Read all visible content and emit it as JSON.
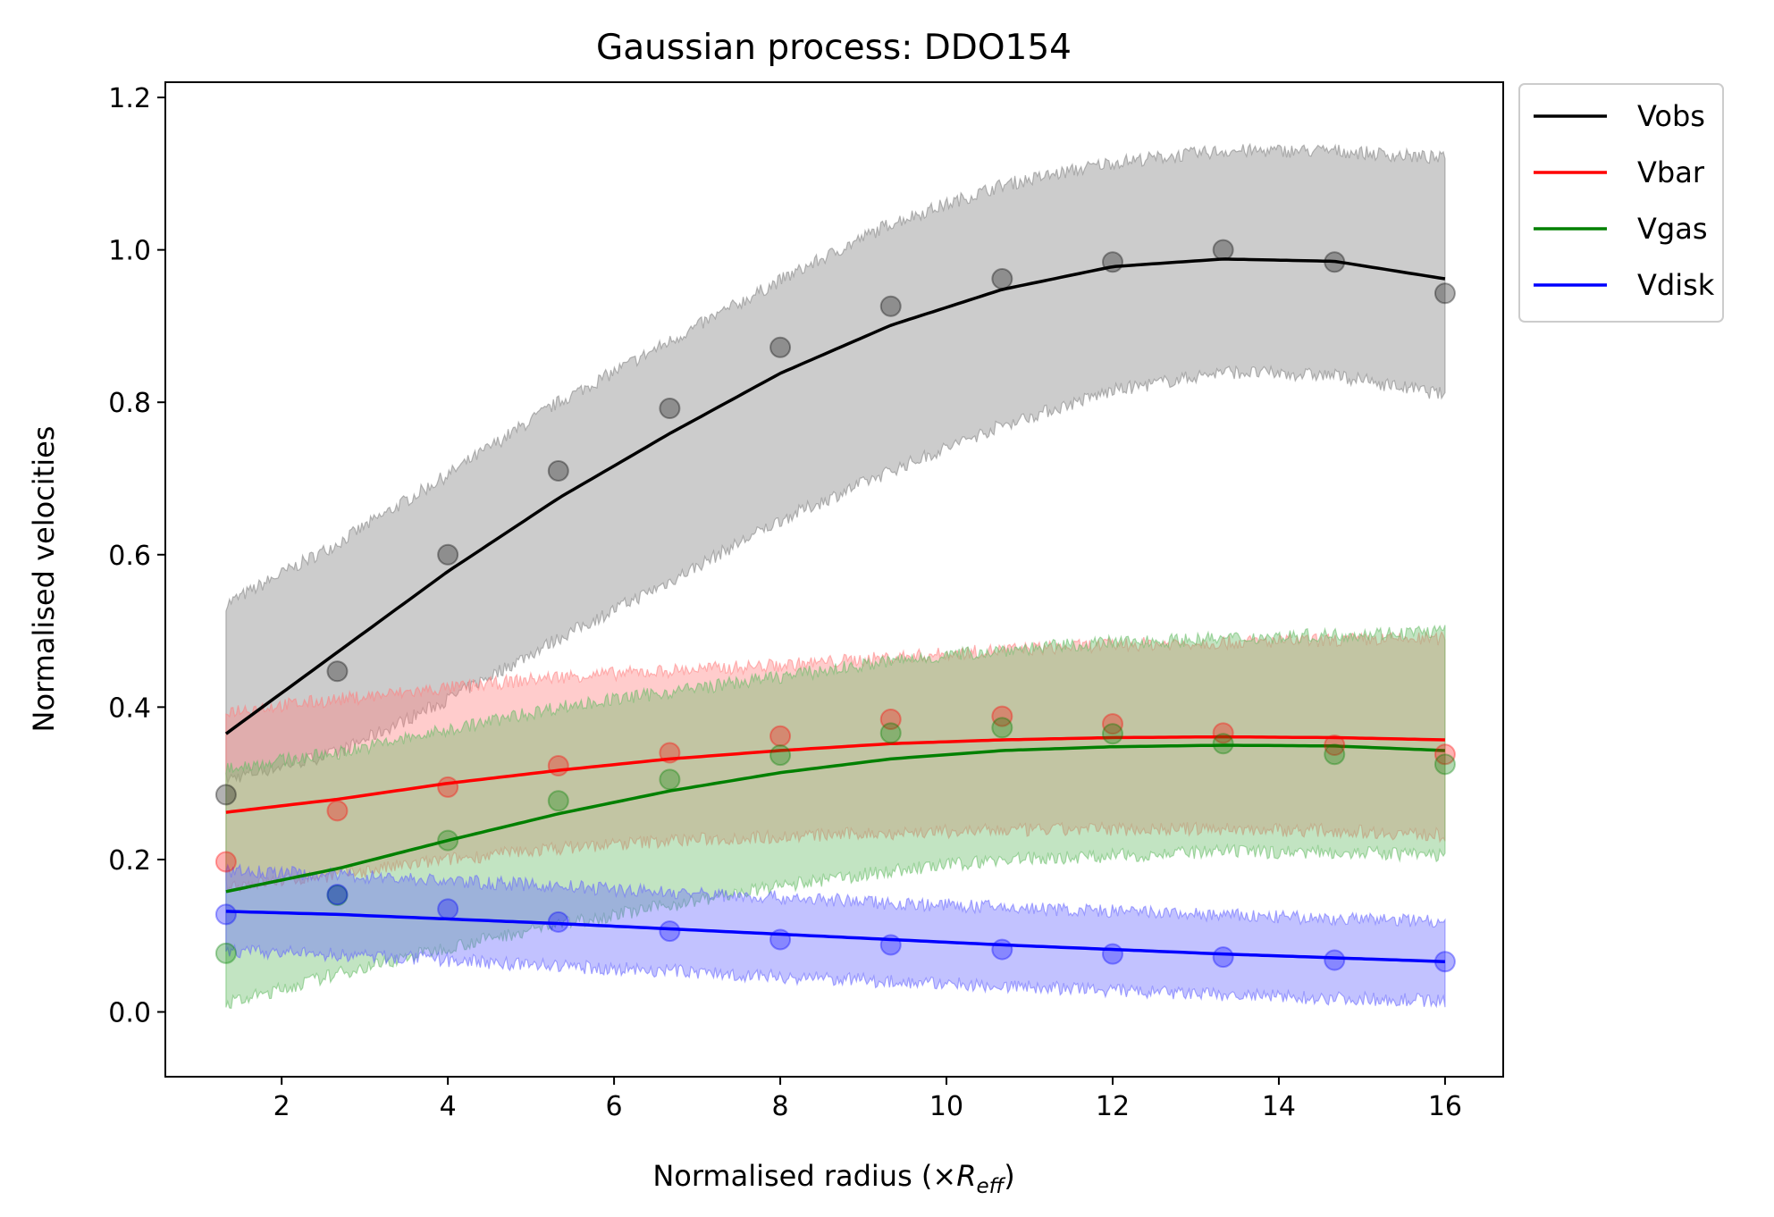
{
  "chart_data": {
    "type": "line",
    "title": "Gaussian process: DDO154",
    "xlabel_main": "Normalised radius (×",
    "xlabel_sym": "R",
    "xlabel_sub": "eff",
    "xlabel_end": ")",
    "ylabel": "Normalised velocities",
    "xlim": [
      0.6,
      16.7
    ],
    "ylim": [
      -0.085,
      1.22
    ],
    "xticks": [
      2,
      4,
      6,
      8,
      10,
      12,
      14,
      16
    ],
    "yticks": [
      0.0,
      0.2,
      0.4,
      0.6,
      0.8,
      1.0,
      1.2
    ],
    "legend_position": "outside-top-right",
    "x": [
      1.33,
      2.67,
      4.0,
      5.33,
      6.67,
      8.0,
      9.33,
      10.67,
      12.0,
      13.33,
      14.67,
      16.0
    ],
    "series": [
      {
        "name": "Vobs",
        "color": "#000000",
        "band_color": "#808080",
        "points": [
          0.285,
          0.447,
          0.6,
          0.71,
          0.792,
          0.872,
          0.926,
          0.962,
          0.984,
          1.0,
          0.984,
          0.943
        ],
        "curve": [
          0.365,
          0.472,
          0.578,
          0.674,
          0.759,
          0.838,
          0.901,
          0.948,
          0.978,
          0.988,
          0.985,
          0.962
        ],
        "band_low": [
          0.305,
          0.34,
          0.41,
          0.49,
          0.565,
          0.645,
          0.71,
          0.77,
          0.815,
          0.84,
          0.835,
          0.81
        ],
        "band_high": [
          0.535,
          0.615,
          0.705,
          0.8,
          0.88,
          0.96,
          1.035,
          1.085,
          1.115,
          1.13,
          1.13,
          1.12
        ]
      },
      {
        "name": "Vbar",
        "color": "#ff0000",
        "band_color": "#ff8080",
        "points": [
          0.197,
          0.264,
          0.295,
          0.323,
          0.34,
          0.362,
          0.384,
          0.388,
          0.378,
          0.366,
          0.35,
          0.338
        ],
        "curve": [
          0.262,
          0.279,
          0.3,
          0.317,
          0.332,
          0.343,
          0.352,
          0.357,
          0.36,
          0.361,
          0.36,
          0.357
        ],
        "band_low": [
          0.165,
          0.18,
          0.2,
          0.215,
          0.225,
          0.23,
          0.235,
          0.238,
          0.24,
          0.24,
          0.238,
          0.232
        ],
        "band_high": [
          0.395,
          0.41,
          0.425,
          0.44,
          0.448,
          0.455,
          0.465,
          0.475,
          0.482,
          0.485,
          0.488,
          0.49
        ]
      },
      {
        "name": "Vgas",
        "color": "#008000",
        "band_color": "#66bb66",
        "points": [
          0.077,
          0.153,
          0.225,
          0.277,
          0.305,
          0.337,
          0.366,
          0.373,
          0.365,
          0.352,
          0.338,
          0.325
        ],
        "curve": [
          0.158,
          0.188,
          0.225,
          0.26,
          0.29,
          0.314,
          0.332,
          0.343,
          0.348,
          0.35,
          0.349,
          0.343
        ],
        "band_low": [
          0.01,
          0.05,
          0.085,
          0.115,
          0.14,
          0.165,
          0.185,
          0.2,
          0.205,
          0.21,
          0.21,
          0.205
        ],
        "band_high": [
          0.32,
          0.34,
          0.37,
          0.4,
          0.42,
          0.44,
          0.46,
          0.475,
          0.485,
          0.49,
          0.495,
          0.5
        ]
      },
      {
        "name": "Vdisk",
        "color": "#0000ff",
        "band_color": "#6666ff",
        "points": [
          0.128,
          0.154,
          0.135,
          0.118,
          0.106,
          0.095,
          0.088,
          0.082,
          0.076,
          0.072,
          0.068,
          0.066
        ],
        "curve": [
          0.132,
          0.128,
          0.122,
          0.116,
          0.109,
          0.102,
          0.095,
          0.088,
          0.082,
          0.076,
          0.071,
          0.066
        ],
        "band_low": [
          0.08,
          0.075,
          0.068,
          0.06,
          0.054,
          0.046,
          0.04,
          0.034,
          0.028,
          0.022,
          0.018,
          0.015
        ],
        "band_high": [
          0.185,
          0.18,
          0.172,
          0.165,
          0.157,
          0.15,
          0.143,
          0.137,
          0.132,
          0.127,
          0.122,
          0.12
        ]
      }
    ]
  }
}
